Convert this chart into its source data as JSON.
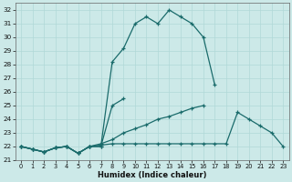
{
  "xlabel": "Humidex (Indice chaleur)",
  "bg_color": "#cce9e8",
  "line_color": "#1a6b6b",
  "grid_color": "#b0d8d7",
  "xlim": [
    -0.5,
    23.5
  ],
  "ylim": [
    21.0,
    32.5
  ],
  "xticks": [
    0,
    1,
    2,
    3,
    4,
    5,
    6,
    7,
    8,
    9,
    10,
    11,
    12,
    13,
    14,
    15,
    16,
    17,
    18,
    19,
    20,
    21,
    22,
    23
  ],
  "yticks": [
    21,
    22,
    23,
    24,
    25,
    26,
    27,
    28,
    29,
    30,
    31,
    32
  ],
  "line1_x": [
    0,
    1,
    2,
    3,
    4,
    5,
    6,
    7,
    8,
    9,
    10,
    11,
    12,
    13,
    14,
    15,
    16,
    17
  ],
  "line1_y": [
    22,
    21.8,
    21.6,
    21.9,
    22,
    21.5,
    22,
    22,
    28.2,
    29.2,
    31.0,
    31.5,
    31.0,
    32.0,
    31.5,
    31.0,
    30.0,
    26.5
  ],
  "line2_x": [
    0,
    1,
    2,
    3,
    4,
    5,
    6,
    7,
    8,
    9
  ],
  "line2_y": [
    22,
    21.8,
    21.6,
    21.9,
    22,
    21.5,
    22,
    22,
    25.0,
    25.5
  ],
  "line3_x": [
    0,
    1,
    2,
    3,
    4,
    5,
    6,
    7,
    8,
    9,
    10,
    11,
    12,
    13,
    14,
    15,
    16,
    17,
    18,
    19,
    20,
    21,
    22,
    23
  ],
  "line3_y": [
    22,
    21.8,
    21.6,
    21.9,
    22,
    21.5,
    22,
    22.2,
    22.5,
    23.0,
    23.3,
    23.6,
    24.0,
    24.2,
    24.5,
    24.8,
    25.0,
    null,
    null,
    null,
    null,
    null,
    null,
    null
  ],
  "line4_x": [
    0,
    1,
    2,
    3,
    4,
    5,
    6,
    7,
    8,
    9,
    10,
    11,
    12,
    13,
    14,
    15,
    16,
    17,
    18,
    19,
    20,
    21,
    22,
    23
  ],
  "line4_y": [
    22,
    21.8,
    21.6,
    21.9,
    22,
    21.5,
    22,
    22.1,
    22.2,
    22.2,
    22.2,
    22.2,
    22.2,
    22.2,
    22.2,
    22.2,
    22.2,
    22.2,
    22.2,
    24.5,
    24.0,
    23.5,
    23.0,
    22.0
  ]
}
